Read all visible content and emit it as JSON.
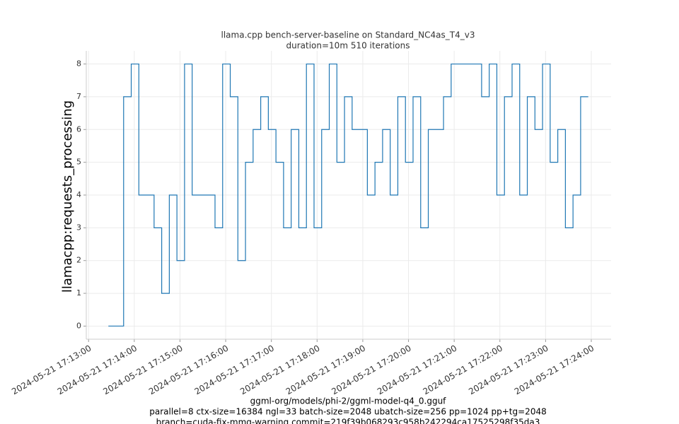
{
  "chart_data": {
    "type": "line",
    "title": "llama.cpp bench-server-baseline on Standard_NC4as_T4_v3",
    "subtitle": "duration=10m 510 iterations",
    "y_label": "llamacpp:requests_processing",
    "annotations": [
      "ggml-org/models/phi-2/ggml-model-q4_0.gguf",
      "parallel=8 ctx-size=16384 ngl=33 batch-size=2048 ubatch-size=256 pp=1024 pp+tg=2048",
      "branch=cuda-fix-mmq-warning commit=219f39b068293c958b242294ca17525298f35da3"
    ],
    "x": [
      "2024-05-21 17:13:26",
      "2024-05-21 17:13:36",
      "2024-05-21 17:13:46",
      "2024-05-21 17:13:56",
      "2024-05-21 17:14:06",
      "2024-05-21 17:14:16",
      "2024-05-21 17:14:26",
      "2024-05-21 17:14:36",
      "2024-05-21 17:14:46",
      "2024-05-21 17:14:56",
      "2024-05-21 17:15:06",
      "2024-05-21 17:15:16",
      "2024-05-21 17:15:26",
      "2024-05-21 17:15:36",
      "2024-05-21 17:15:46",
      "2024-05-21 17:15:56",
      "2024-05-21 17:16:06",
      "2024-05-21 17:16:16",
      "2024-05-21 17:16:26",
      "2024-05-21 17:16:36",
      "2024-05-21 17:16:46",
      "2024-05-21 17:16:56",
      "2024-05-21 17:17:06",
      "2024-05-21 17:17:16",
      "2024-05-21 17:17:26",
      "2024-05-21 17:17:36",
      "2024-05-21 17:17:46",
      "2024-05-21 17:17:56",
      "2024-05-21 17:18:06",
      "2024-05-21 17:18:16",
      "2024-05-21 17:18:26",
      "2024-05-21 17:18:36",
      "2024-05-21 17:18:46",
      "2024-05-21 17:18:56",
      "2024-05-21 17:19:06",
      "2024-05-21 17:19:16",
      "2024-05-21 17:19:26",
      "2024-05-21 17:19:36",
      "2024-05-21 17:19:46",
      "2024-05-21 17:19:56",
      "2024-05-21 17:20:06",
      "2024-05-21 17:20:16",
      "2024-05-21 17:20:26",
      "2024-05-21 17:20:36",
      "2024-05-21 17:20:46",
      "2024-05-21 17:20:56",
      "2024-05-21 17:21:06",
      "2024-05-21 17:21:16",
      "2024-05-21 17:21:26",
      "2024-05-21 17:21:36",
      "2024-05-21 17:21:46",
      "2024-05-21 17:21:56",
      "2024-05-21 17:22:06",
      "2024-05-21 17:22:16",
      "2024-05-21 17:22:26",
      "2024-05-21 17:22:36",
      "2024-05-21 17:22:46",
      "2024-05-21 17:22:56",
      "2024-05-21 17:23:06",
      "2024-05-21 17:23:16",
      "2024-05-21 17:23:26",
      "2024-05-21 17:23:36",
      "2024-05-21 17:23:46",
      "2024-05-21 17:23:56"
    ],
    "series": [
      {
        "name": "llamacpp:requests_processing",
        "color": "#1f77b4",
        "values": [
          0,
          0,
          7,
          8,
          4,
          4,
          3,
          1,
          4,
          2,
          8,
          4,
          4,
          4,
          3,
          8,
          7,
          2,
          5,
          6,
          7,
          6,
          5,
          3,
          6,
          3,
          8,
          3,
          6,
          8,
          5,
          7,
          6,
          6,
          4,
          5,
          6,
          4,
          7,
          5,
          7,
          3,
          6,
          6,
          7,
          8,
          8,
          8,
          8,
          7,
          8,
          4,
          7,
          8,
          4,
          7,
          6,
          8,
          5,
          6,
          3,
          4,
          7,
          7
        ]
      }
    ],
    "step": true,
    "xlim": [
      "2024-05-21 17:12:57",
      "2024-05-21 17:24:26"
    ],
    "xticks": [
      "2024-05-21 17:13:00",
      "2024-05-21 17:14:00",
      "2024-05-21 17:15:00",
      "2024-05-21 17:16:00",
      "2024-05-21 17:17:00",
      "2024-05-21 17:18:00",
      "2024-05-21 17:19:00",
      "2024-05-21 17:20:00",
      "2024-05-21 17:21:00",
      "2024-05-21 17:22:00",
      "2024-05-21 17:23:00",
      "2024-05-21 17:24:00"
    ],
    "ylim": [
      -0.4,
      8.4
    ],
    "yticks": [
      0,
      1,
      2,
      3,
      4,
      5,
      6,
      7,
      8
    ],
    "grid": true
  }
}
